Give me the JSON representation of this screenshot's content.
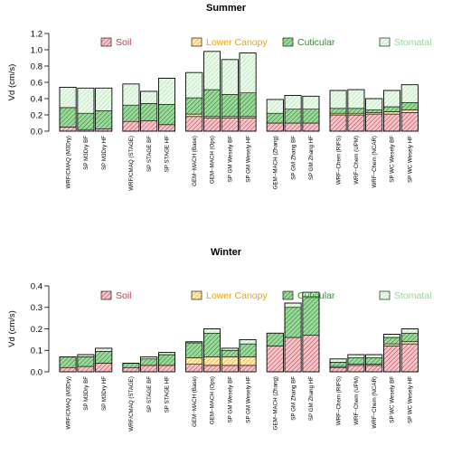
{
  "chart_data": [
    {
      "type": "bar",
      "stacked": true,
      "title": "Summer",
      "ylabel": "Vd (cm/s)",
      "ylim": [
        0,
        1.2
      ],
      "yticks": [
        "0.0",
        "0.2",
        "0.4",
        "0.6",
        "0.8",
        "1.0",
        "1.2"
      ],
      "legend": [
        "Soil",
        "Lower Canopy",
        "Cuticular",
        "Stomatal"
      ],
      "legend_position": "top",
      "grid": false,
      "categories": [
        "WRF/CMAQ (M3Dry)",
        "SP M3Dry BF",
        "SP M3Dry HF",
        "WRF/CMAQ (STAGE)",
        "SP STAGE BF",
        "SP STAGE HF",
        "GEM−MACH (Base)",
        "GEM−MACH (Ops)",
        "SP GM Wesely BF",
        "SP GM Wesely HF",
        "GEM−MACH (Zhang)",
        "SP GM Zhang BF",
        "SP GM Zhang HF",
        "WRF−Chem (RIFS)",
        "WRF−Chem (UPM)",
        "WRF−Chem (NCAR)",
        "SP WC Wesely BF",
        "SP WC Wesely HF"
      ],
      "groups": [
        3,
        3,
        4,
        3,
        5
      ],
      "series": [
        {
          "name": "Soil",
          "values": [
            0.05,
            0.02,
            0.03,
            0.12,
            0.13,
            0.08,
            0.18,
            0.16,
            0.16,
            0.16,
            0.1,
            0.1,
            0.1,
            0.2,
            0.2,
            0.21,
            0.21,
            0.23
          ]
        },
        {
          "name": "Lower Canopy",
          "values": [
            0.0,
            0.0,
            0.0,
            0.0,
            0.0,
            0.0,
            0.03,
            0.02,
            0.02,
            0.02,
            0.0,
            0.0,
            0.0,
            0.02,
            0.02,
            0.02,
            0.03,
            0.03
          ]
        },
        {
          "name": "Cuticular",
          "values": [
            0.24,
            0.2,
            0.22,
            0.2,
            0.21,
            0.25,
            0.2,
            0.33,
            0.27,
            0.29,
            0.12,
            0.17,
            0.17,
            0.06,
            0.06,
            0.03,
            0.06,
            0.09
          ]
        },
        {
          "name": "Stomatal",
          "values": [
            0.25,
            0.31,
            0.28,
            0.26,
            0.15,
            0.32,
            0.31,
            0.47,
            0.43,
            0.49,
            0.17,
            0.17,
            0.16,
            0.22,
            0.23,
            0.14,
            0.2,
            0.22
          ]
        }
      ]
    },
    {
      "type": "bar",
      "stacked": true,
      "title": "Winter",
      "ylabel": "Vd (cm/s)",
      "ylim": [
        0,
        0.4
      ],
      "yticks": [
        "0.0",
        "0.1",
        "0.2",
        "0.3",
        "0.4"
      ],
      "legend": [
        "Soil",
        "Lower Canopy",
        "Cuticular",
        "Stomatal"
      ],
      "legend_position": "top",
      "grid": false,
      "categories": [
        "WRF/CMAQ (M3Dry)",
        "SP M3Dry BF",
        "SP M3Dry HF",
        "WRF/CMAQ (STAGE)",
        "SP STAGE BF",
        "SP STAGE HF",
        "GEM−MACH (Base)",
        "GEM−MACH (Ops)",
        "SP GM Wesely BF",
        "SP GM Wesely HF",
        "GEM−MACH (Zhang)",
        "SP GM Zhang BF",
        "SP GM Zhang HF",
        "WRF−Chem (RIFS)",
        "WRF−Chem (UPM)",
        "WRF−Chem (NCAR)",
        "SP WC Wesely BF",
        "SP WC Wesely HF"
      ],
      "groups": [
        3,
        3,
        4,
        3,
        5
      ],
      "series": [
        {
          "name": "Soil",
          "values": [
            0.02,
            0.025,
            0.04,
            0.02,
            0.03,
            0.03,
            0.035,
            0.03,
            0.03,
            0.03,
            0.12,
            0.16,
            0.17,
            0.02,
            0.03,
            0.03,
            0.12,
            0.13
          ]
        },
        {
          "name": "Lower Canopy",
          "values": [
            0.0,
            0.0,
            0.0,
            0.0,
            0.0,
            0.0,
            0.03,
            0.04,
            0.04,
            0.04,
            0.0,
            0.0,
            0.0,
            0.005,
            0.005,
            0.005,
            0.01,
            0.01
          ]
        },
        {
          "name": "Cuticular",
          "values": [
            0.05,
            0.045,
            0.055,
            0.02,
            0.03,
            0.05,
            0.07,
            0.11,
            0.03,
            0.06,
            0.06,
            0.14,
            0.18,
            0.02,
            0.03,
            0.03,
            0.03,
            0.04
          ]
        },
        {
          "name": "Stomatal",
          "values": [
            0.0,
            0.01,
            0.015,
            0.0,
            0.01,
            0.01,
            0.005,
            0.02,
            0.01,
            0.02,
            0.0,
            0.02,
            0.02,
            0.015,
            0.015,
            0.015,
            0.015,
            0.02
          ]
        }
      ]
    }
  ],
  "colors": {
    "Soil": "#c8364c",
    "Lower Canopy": "#f0a500",
    "Cuticular": "#1f9a1f",
    "Stomatal": "#8edc8e"
  }
}
